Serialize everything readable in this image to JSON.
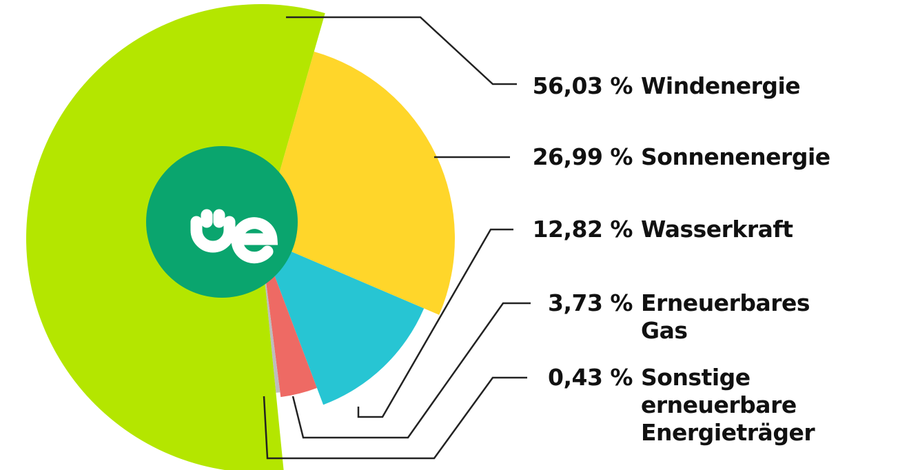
{
  "chart_data": {
    "type": "pie",
    "categories": [
      "Windenergie",
      "Sonnenenergie",
      "Wasserkraft",
      "Erneuerbares Gas",
      "Sonstige erneuerbare Energieträger"
    ],
    "values": [
      56.03,
      26.99,
      12.82,
      3.73,
      0.43
    ],
    "value_labels": [
      "56,03 %",
      "26,99 %",
      "12,82 %",
      "3,73 %",
      "0,43 %"
    ],
    "colors": [
      "#b4e600",
      "#ffd62a",
      "#27c5d3",
      "#ee6a64",
      "#bdbdbd"
    ]
  }
}
